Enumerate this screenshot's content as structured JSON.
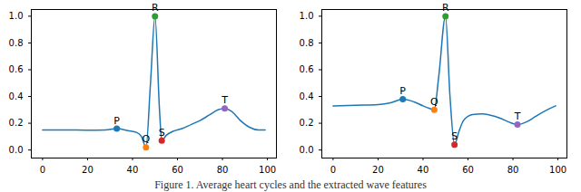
{
  "chart_data": [
    {
      "type": "line",
      "color": "#1f77b4",
      "x": [
        0,
        10,
        20,
        28,
        33,
        38,
        42,
        44,
        46,
        48,
        50,
        52,
        53,
        55,
        58,
        62,
        66,
        70,
        74,
        78,
        81,
        84,
        88,
        92,
        96,
        99
      ],
      "values": [
        0.15,
        0.15,
        0.148,
        0.15,
        0.16,
        0.145,
        0.13,
        0.1,
        0.02,
        0.5,
        1.0,
        0.3,
        0.07,
        0.11,
        0.14,
        0.16,
        0.19,
        0.22,
        0.26,
        0.3,
        0.31,
        0.29,
        0.22,
        0.17,
        0.15,
        0.15
      ],
      "annotations": [
        {
          "label": "P",
          "x": 33,
          "y": 0.16,
          "color": "#1f77b4"
        },
        {
          "label": "Q",
          "x": 46,
          "y": 0.02,
          "color": "#ff7f0e"
        },
        {
          "label": "R",
          "x": 50,
          "y": 1.0,
          "color": "#2ca02c"
        },
        {
          "label": "S",
          "x": 53,
          "y": 0.07,
          "color": "#d62728"
        },
        {
          "label": "T",
          "x": 81,
          "y": 0.31,
          "color": "#9467bd"
        }
      ],
      "xlim": [
        -5,
        104
      ],
      "xticks": [
        0,
        20,
        40,
        60,
        80,
        100
      ],
      "ylim": [
        -0.06,
        1.05
      ],
      "yticks": [
        {
          "value": 0,
          "label": "0.0"
        },
        {
          "value": 0.2,
          "label": "0.2"
        },
        {
          "value": 0.4,
          "label": "0.4"
        },
        {
          "value": 0.6,
          "label": "0.6"
        },
        {
          "value": 0.8,
          "label": "0.8"
        },
        {
          "value": 1,
          "label": "1.0"
        }
      ]
    },
    {
      "type": "line",
      "color": "#1f77b4",
      "x": [
        0,
        10,
        20,
        26,
        31,
        36,
        40,
        43,
        45,
        47,
        50,
        52,
        54,
        56,
        58,
        62,
        66,
        70,
        74,
        78,
        82,
        86,
        90,
        94,
        99
      ],
      "values": [
        0.33,
        0.335,
        0.34,
        0.355,
        0.38,
        0.36,
        0.33,
        0.31,
        0.3,
        0.55,
        1.0,
        0.4,
        0.04,
        0.14,
        0.22,
        0.265,
        0.27,
        0.26,
        0.24,
        0.21,
        0.19,
        0.21,
        0.25,
        0.29,
        0.33
      ],
      "annotations": [
        {
          "label": "P",
          "x": 31,
          "y": 0.38,
          "color": "#1f77b4"
        },
        {
          "label": "Q",
          "x": 45,
          "y": 0.3,
          "color": "#ff7f0e"
        },
        {
          "label": "R",
          "x": 50,
          "y": 1.0,
          "color": "#2ca02c"
        },
        {
          "label": "S",
          "x": 54,
          "y": 0.04,
          "color": "#d62728"
        },
        {
          "label": "T",
          "x": 82,
          "y": 0.19,
          "color": "#9467bd"
        }
      ],
      "xlim": [
        -5,
        104
      ],
      "xticks": [
        0,
        20,
        40,
        60,
        80,
        100
      ],
      "ylim": [
        -0.06,
        1.05
      ],
      "yticks": [
        {
          "value": 0,
          "label": "0.0"
        },
        {
          "value": 0.2,
          "label": "0.2"
        },
        {
          "value": 0.4,
          "label": "0.4"
        },
        {
          "value": 0.6,
          "label": "0.6"
        },
        {
          "value": 0.8,
          "label": "0.8"
        },
        {
          "value": 1,
          "label": "1.0"
        }
      ]
    }
  ],
  "caption": "Figure 1. Average heart cycles and the extracted wave features"
}
